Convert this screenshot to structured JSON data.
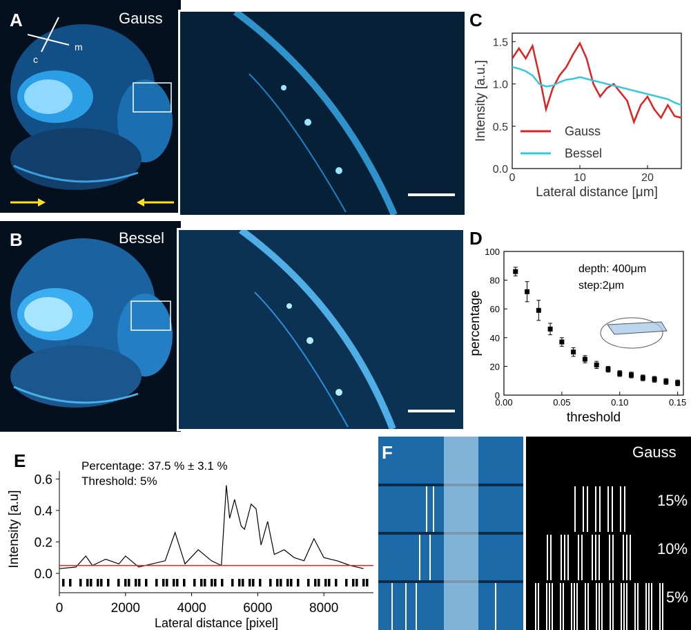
{
  "panel_labels": {
    "A": "A",
    "B": "B",
    "C": "C",
    "D": "D",
    "E": "E",
    "F": "F"
  },
  "panelA": {
    "title": "Gauss",
    "axis_labels": {
      "c": "c",
      "m": "m"
    }
  },
  "panelB": {
    "title": "Bessel"
  },
  "colors": {
    "tissue": "#1e8fd6",
    "bg_dark": "#04101d",
    "gauss": "#e02020",
    "bessel": "#33c9d6",
    "threshold_line": "#e02020",
    "arrow": "#ffe01a"
  },
  "chart_data": [
    {
      "id": "C",
      "type": "line",
      "xlabel": "Lateral distance [μm]",
      "ylabel": "Intensity [a.u.]",
      "xlim": [
        0,
        25
      ],
      "ylim": [
        0,
        1.6
      ],
      "xticks": [
        "0",
        "10",
        "20"
      ],
      "yticks": [
        "0.0",
        "0.5",
        "1.0",
        "1.5"
      ],
      "series": [
        {
          "name": "Gauss",
          "x": [
            0,
            1,
            2,
            3,
            4,
            5,
            6,
            7,
            8,
            9,
            10,
            11,
            12,
            13,
            14,
            15,
            16,
            17,
            18,
            19,
            20,
            21,
            22,
            23,
            24,
            25
          ],
          "values": [
            1.3,
            1.42,
            1.3,
            1.45,
            1.1,
            0.7,
            0.95,
            1.1,
            1.2,
            1.35,
            1.48,
            1.3,
            1.0,
            0.85,
            0.95,
            1.0,
            0.9,
            0.8,
            0.55,
            0.75,
            0.85,
            0.7,
            0.6,
            0.75,
            0.62,
            0.6
          ]
        },
        {
          "name": "Bessel",
          "x": [
            0,
            1,
            2,
            3,
            4,
            5,
            6,
            7,
            8,
            9,
            10,
            11,
            12,
            13,
            14,
            15,
            16,
            17,
            18,
            19,
            20,
            21,
            22,
            23,
            24,
            25
          ],
          "values": [
            1.2,
            1.18,
            1.15,
            1.1,
            1.0,
            0.97,
            0.98,
            1.02,
            1.05,
            1.06,
            1.08,
            1.06,
            1.04,
            1.02,
            1.0,
            0.98,
            0.96,
            0.94,
            0.92,
            0.9,
            0.88,
            0.86,
            0.84,
            0.82,
            0.78,
            0.75
          ]
        }
      ],
      "legend_position": "bottom-left"
    },
    {
      "id": "D",
      "type": "scatter",
      "xlabel": "threshold",
      "ylabel": "percentage",
      "xlim": [
        0,
        0.155
      ],
      "ylim": [
        0,
        100
      ],
      "xticks": [
        "0.00",
        "0.05",
        "0.10",
        "0.15"
      ],
      "yticks": [
        "0",
        "20",
        "40",
        "60",
        "80",
        "100"
      ],
      "annotations": [
        "depth: 400μm",
        "step:2μm"
      ],
      "series": [
        {
          "x": [
            0.01,
            0.02,
            0.03,
            0.04,
            0.05,
            0.06,
            0.07,
            0.08,
            0.09,
            0.1,
            0.11,
            0.12,
            0.13,
            0.14,
            0.15
          ],
          "values": [
            86,
            72,
            59,
            46,
            37,
            30,
            25,
            21,
            18,
            15,
            14,
            12,
            11,
            9.5,
            8.5
          ],
          "errors": [
            3,
            7,
            7,
            4,
            3,
            3,
            2.5,
            2.5,
            2,
            2,
            2,
            2,
            2,
            2,
            2
          ]
        }
      ]
    },
    {
      "id": "E",
      "type": "line",
      "xlabel": "Lateral distance [pixel]",
      "ylabel": "Intensity [a.u]",
      "xlim": [
        0,
        9500
      ],
      "ylim": [
        0,
        0.65
      ],
      "xticks": [
        "0",
        "2000",
        "4000",
        "6000",
        "8000"
      ],
      "yticks": [
        "0.0",
        "0.2",
        "0.4",
        "0.6"
      ],
      "annotations": [
        "Percentage: 37.5 % ± 3.1 %",
        "Threshold: 5%"
      ],
      "threshold": 0.05,
      "series": [
        {
          "name": "intensity",
          "x": [
            0,
            500,
            800,
            1000,
            1400,
            1800,
            2000,
            2400,
            2800,
            3200,
            3500,
            3800,
            4200,
            4600,
            4900,
            5050,
            5150,
            5300,
            5500,
            5600,
            5800,
            5950,
            6100,
            6300,
            6500,
            6800,
            7100,
            7400,
            7700,
            8000,
            8400,
            8800,
            9200
          ],
          "values": [
            0.03,
            0.04,
            0.11,
            0.05,
            0.09,
            0.06,
            0.11,
            0.04,
            0.06,
            0.08,
            0.26,
            0.06,
            0.15,
            0.08,
            0.05,
            0.56,
            0.35,
            0.47,
            0.3,
            0.28,
            0.44,
            0.41,
            0.18,
            0.33,
            0.12,
            0.15,
            0.1,
            0.08,
            0.22,
            0.1,
            0.08,
            0.05,
            0.03
          ]
        }
      ]
    }
  ],
  "panelF": {
    "labels": [
      "Gauss",
      "15%",
      "10%",
      "5%"
    ]
  }
}
